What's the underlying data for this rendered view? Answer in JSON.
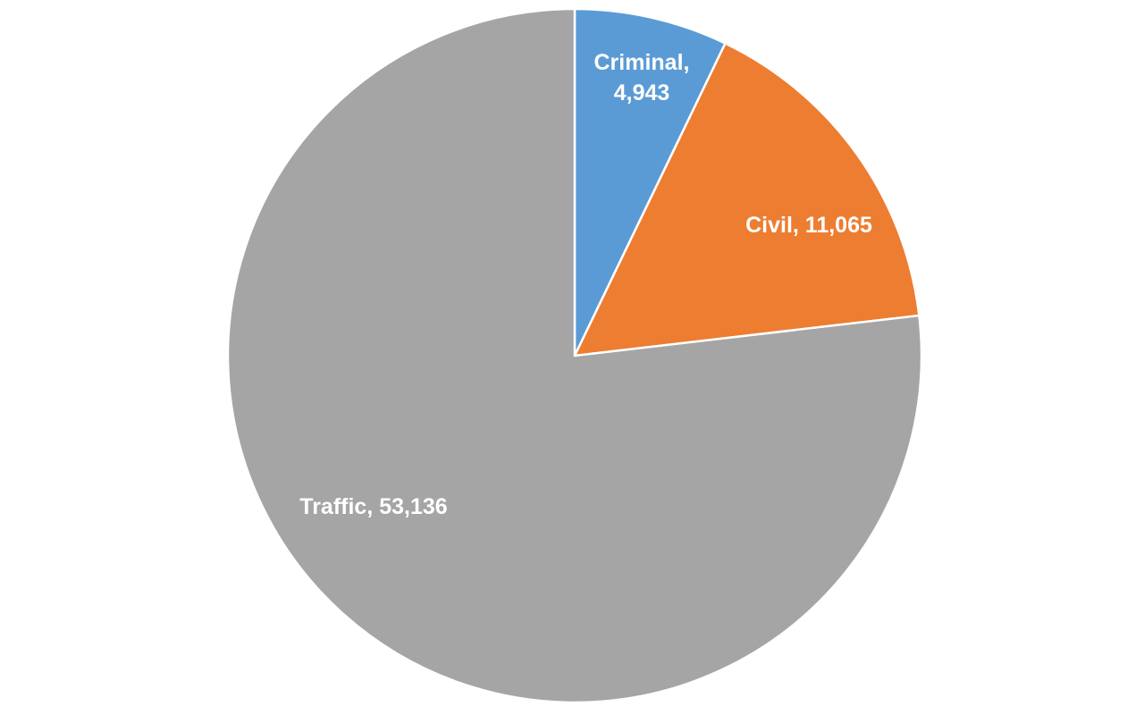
{
  "chart_data": {
    "type": "pie",
    "title": "",
    "start_angle_deg": 0,
    "direction": "clockwise",
    "legend": "none",
    "slices": [
      {
        "name": "Criminal",
        "value": 4943,
        "value_label": "4,943",
        "color": "#5B9BD5"
      },
      {
        "name": "Civil",
        "value": 11065,
        "value_label": "11,065",
        "color": "#ED7D31"
      },
      {
        "name": "Traffic",
        "value": 53136,
        "value_label": "53,136",
        "color": "#A5A5A5"
      }
    ]
  }
}
